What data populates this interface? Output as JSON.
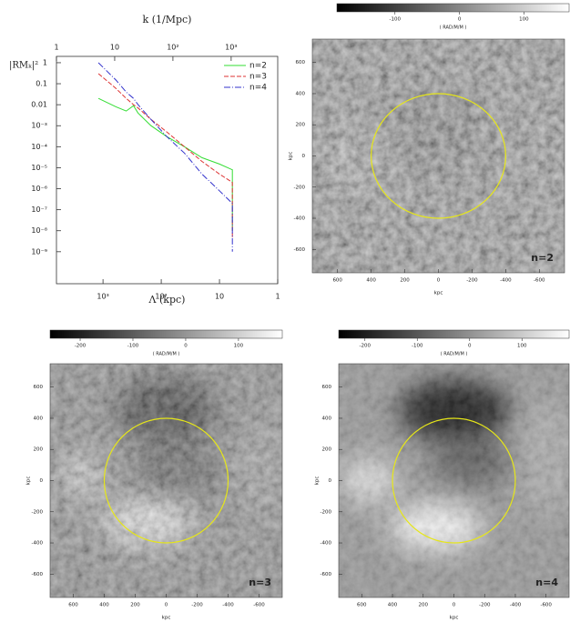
{
  "chart_data": [
    {
      "type": "line",
      "xlabel": "Λ (kpc)",
      "x2label": "k (1/Mpc)",
      "ylabel": "|RMₖ|²",
      "xlim": [
        6300,
        1
      ],
      "xticks": [
        {
          "value": 1000,
          "label": "10³"
        },
        {
          "value": 100,
          "label": "10²"
        },
        10,
        1
      ],
      "x2lim": [
        1,
        6300
      ],
      "x2ticks": [
        1,
        10,
        {
          "value": 100,
          "label": "10²"
        },
        {
          "value": 1000,
          "label": "10³"
        }
      ],
      "ylim": [
        2,
        3e-11
      ],
      "log": true,
      "yticks": [
        1,
        0.1,
        0.01,
        {
          "value": 0.001,
          "label": "10⁻³"
        },
        {
          "value": 0.0001,
          "label": "10⁻⁴"
        },
        {
          "value": 1e-05,
          "label": "10⁻⁵"
        },
        {
          "value": 1e-06,
          "label": "10⁻⁶"
        },
        {
          "value": 1e-07,
          "label": "10⁻⁷"
        },
        {
          "value": 1e-08,
          "label": "10⁻⁸"
        },
        {
          "value": 1e-09,
          "label": "10⁻⁹"
        }
      ],
      "legend": "upper right",
      "x": [
        1200,
        600,
        400,
        300,
        250,
        150,
        80,
        40,
        20,
        10,
        6,
        6
      ],
      "series": [
        {
          "name": "n=2",
          "color": "#33dd33",
          "values": [
            0.02,
            0.008,
            0.005,
            0.009,
            0.004,
            0.001,
            0.0003,
            0.0001,
            3e-05,
            1.5e-05,
            8e-06,
            1e-08
          ]
        },
        {
          "name": "n=3",
          "color": "#dd3333",
          "values": [
            0.3,
            0.06,
            0.02,
            0.01,
            0.007,
            0.002,
            0.0005,
            0.0001,
            2e-05,
            5e-06,
            2e-06,
            5e-09
          ]
        },
        {
          "name": "n=4",
          "color": "#3333cc",
          "values": [
            1,
            0.15,
            0.04,
            0.02,
            0.01,
            0.002,
            0.0003,
            5e-05,
            5e-06,
            8e-07,
            2e-07,
            1e-09
          ]
        }
      ]
    },
    {
      "type": "image",
      "annotation": "n=2",
      "xlabel": "kpc",
      "ylabel": "kpc",
      "xlim": [
        750,
        -750
      ],
      "xticks": [
        600,
        400,
        200,
        0,
        -200,
        -400,
        -600
      ],
      "ylim": [
        -750,
        750
      ],
      "yticks": [
        600,
        400,
        200,
        0,
        -200,
        -400,
        -600
      ],
      "clim": [
        -190,
        170
      ],
      "colorbar_ticks": [
        -100,
        0,
        100
      ],
      "colorbar_label": "( RAD/M/M )",
      "circle": {
        "radius": 400,
        "color": "#e6e619"
      }
    },
    {
      "type": "image",
      "annotation": "n=3",
      "xlabel": "kpc",
      "ylabel": "kpc",
      "xlim": [
        750,
        -750
      ],
      "xticks": [
        600,
        400,
        200,
        0,
        -200,
        -400,
        -600
      ],
      "ylim": [
        -750,
        750
      ],
      "yticks": [
        600,
        400,
        200,
        0,
        -200,
        -400,
        -600
      ],
      "clim": [
        -257,
        183
      ],
      "colorbar_ticks": [
        -200,
        -100,
        0,
        100
      ],
      "colorbar_label": "( RAD/M/M )",
      "circle": {
        "radius": 400,
        "color": "#e6e619"
      }
    },
    {
      "type": "image",
      "annotation": "n=4",
      "xlabel": "kpc",
      "ylabel": "kpc",
      "xlim": [
        750,
        -750
      ],
      "xticks": [
        600,
        400,
        200,
        0,
        -200,
        -400,
        -600
      ],
      "ylim": [
        -750,
        750
      ],
      "yticks": [
        600,
        400,
        200,
        0,
        -200,
        -400,
        -600
      ],
      "clim": [
        -250,
        190
      ],
      "colorbar_ticks": [
        -200,
        -100,
        0,
        100
      ],
      "colorbar_label": "( RAD/M/M )",
      "circle": {
        "radius": 400,
        "color": "#e6e619"
      }
    }
  ]
}
